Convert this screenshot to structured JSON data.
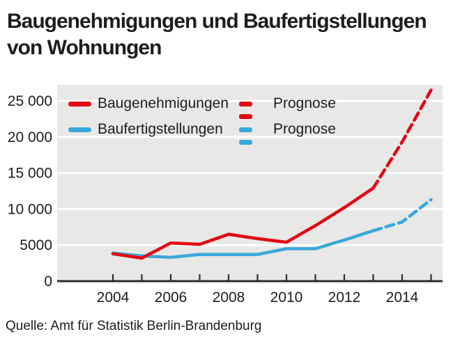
{
  "title": {
    "line1": "Baugenehmigungen und Baufertigstellungen",
    "line2": "von Wohnungen"
  },
  "source": "Quelle: Amt für Statistik Berlin-Brandenburg",
  "colors": {
    "permits": "#e30613",
    "completions": "#3aa7db",
    "plot_bg": "#e8e8e6",
    "grid": "#ffffff",
    "axis": "#2d2d2d",
    "text": "#1d1d1b"
  },
  "legend": [
    {
      "label": "Baugenehmigungen",
      "prognose_label": "Prognose",
      "color_key": "permits"
    },
    {
      "label": "Baufertigstellungen",
      "prognose_label": "Prognose",
      "color_key": "completions"
    }
  ],
  "chart_data": {
    "type": "line",
    "x": [
      2004,
      2005,
      2006,
      2007,
      2008,
      2009,
      2010,
      2011,
      2012,
      2013,
      2014,
      2015
    ],
    "x_tick_labels": [
      "2004",
      "2006",
      "2008",
      "2010",
      "2012",
      "2014"
    ],
    "y_ticks": [
      0,
      5000,
      10000,
      15000,
      20000,
      25000
    ],
    "y_tick_labels": [
      "0",
      "5000",
      "10 000",
      "15 000",
      "20 000",
      "25 000"
    ],
    "ylim": [
      0,
      27500
    ],
    "grid": true,
    "legend_position": "top-left-inside",
    "series": [
      {
        "name": "Baufertigstellungen",
        "style": "solid",
        "color_key": "completions",
        "x": [
          2004,
          2005,
          2006,
          2007,
          2008,
          2009,
          2010,
          2011,
          2012,
          2013
        ],
        "values": [
          3900,
          3500,
          3300,
          3700,
          3700,
          3700,
          4500,
          4500,
          5700,
          7000
        ]
      },
      {
        "name": "Baufertigstellungen Prognose",
        "style": "dashed",
        "color_key": "completions",
        "x": [
          2013,
          2014,
          2015
        ],
        "values": [
          7000,
          8200,
          11300
        ]
      },
      {
        "name": "Baugenehmigungen",
        "style": "solid",
        "color_key": "permits",
        "x": [
          2004,
          2005,
          2006,
          2007,
          2008,
          2009,
          2010,
          2011,
          2012,
          2013
        ],
        "values": [
          3800,
          3200,
          5300,
          5100,
          6500,
          5900,
          5400,
          7700,
          10200,
          12900
        ]
      },
      {
        "name": "Baugenehmigungen Prognose",
        "style": "dashed",
        "color_key": "permits",
        "x": [
          2013,
          2014,
          2015
        ],
        "values": [
          12900,
          19300,
          26500
        ]
      }
    ]
  }
}
